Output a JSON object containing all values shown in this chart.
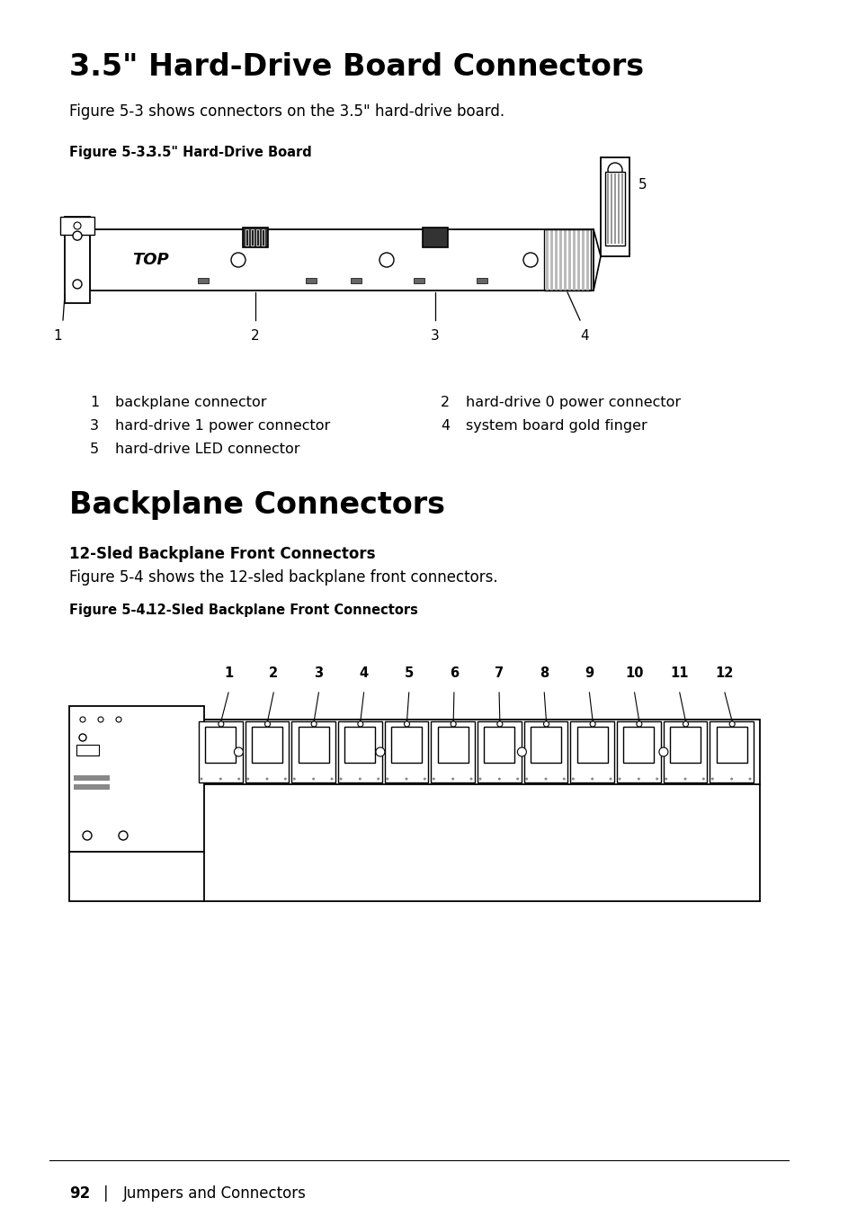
{
  "bg_color": "#ffffff",
  "title1": "3.5\" Hard-Drive Board Connectors",
  "subtitle1": "Figure 5-3 shows connectors on the 3.5\" hard-drive board.",
  "fig_label1_bold": "Figure 5-3.",
  "fig_label1_normal": "   3.5\" Hard-Drive Board",
  "legend1_left": [
    {
      "num": "1",
      "desc": "backplane connector"
    },
    {
      "num": "3",
      "desc": "hard-drive 1 power connector"
    },
    {
      "num": "5",
      "desc": "hard-drive LED connector"
    }
  ],
  "legend1_right": [
    {
      "num": "2",
      "desc": "hard-drive 0 power connector"
    },
    {
      "num": "4",
      "desc": "system board gold finger"
    }
  ],
  "title2": "Backplane Connectors",
  "subtitle2": "12-Sled Backplane Front Connectors",
  "body2": "Figure 5-4 shows the 12-sled backplane front connectors.",
  "fig_label2_bold": "Figure 5-4.",
  "fig_label2_normal": "   12-Sled Backplane Front Connectors",
  "footer_num": "92",
  "footer_sep": "|",
  "footer_text": "Jumpers and Connectors"
}
